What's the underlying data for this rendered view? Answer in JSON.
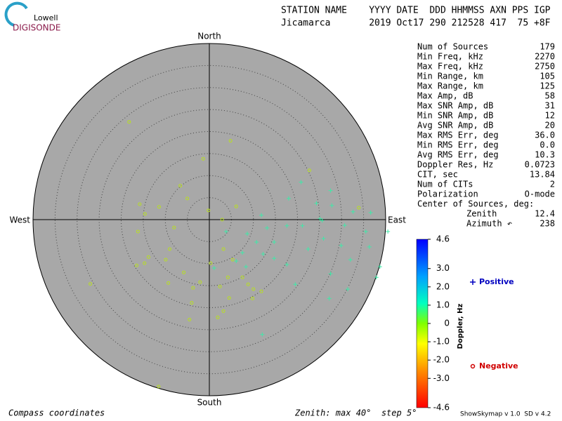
{
  "logo": {
    "top": "Lowell",
    "name": "DIGISONDE"
  },
  "header": {
    "labels": "STATION NAME    YYYY DATE  DDD HHMMSS AXN PPS IGP",
    "values": "Jicamarca       2019 Oct17 290 212528 417  75 +8F"
  },
  "params": [
    [
      "Num of Sources",
      "179"
    ],
    [
      "Min Freq, kHz",
      "2270"
    ],
    [
      "Max Freq, kHz",
      "2750"
    ],
    [
      "Min Range, km",
      "105"
    ],
    [
      "Max Range, km",
      "125"
    ],
    [
      "Max Amp, dB",
      "58"
    ],
    [
      "Max SNR Amp, dB",
      "31"
    ],
    [
      "Min SNR Amp, dB",
      "12"
    ],
    [
      "Avg SNR Amp, dB",
      "20"
    ],
    [
      "Max RMS Err, deg",
      "36.0"
    ],
    [
      "Min RMS Err, deg",
      "0.0"
    ],
    [
      "Avg RMS Err, deg",
      "10.3"
    ],
    [
      "Doppler Res, Hz",
      "0.0723"
    ],
    [
      "CIT, sec",
      "13.84"
    ],
    [
      "Num of CITs",
      "2"
    ],
    [
      "Polarization",
      "O-mode"
    ]
  ],
  "center": {
    "title": "Center of Sources, deg:",
    "rows": [
      [
        "Zenith",
        "12.4"
      ],
      [
        "Azimuth ↶",
        "238"
      ]
    ]
  },
  "footer": {
    "left": "Compass coordinates",
    "middle": "Zenith: max 40°  step 5°",
    "right": "ShowSkymap v 1.0  SD v 4.2"
  },
  "chart_data": {
    "type": "scatter",
    "directions": {
      "north": "North",
      "south": "South",
      "east": "East",
      "west": "West"
    },
    "rlim": [
      0,
      40
    ],
    "rticks": [
      5,
      10,
      15,
      20,
      25,
      30,
      35
    ],
    "series": [
      {
        "name": "Positive",
        "marker": "plus",
        "color": "#40e8a8",
        "legend_color": "#0000c0",
        "x": [
          20.8,
          18,
          24.3,
          27.8,
          32.6,
          36.6,
          40.5,
          11.8,
          13.1,
          17.6,
          21.1,
          25.6,
          30.7,
          35.5,
          8.6,
          10.7,
          14.7,
          22.4,
          25.9,
          29.9,
          36.3,
          38.7,
          32,
          7.5,
          12.2,
          17.6,
          27.5,
          37.9,
          31.4,
          27.2,
          19.5,
          12,
          8.3,
          3.8,
          1.1,
          6.1,
          27.5,
          25.1,
          14.7
        ],
        "y": [
          8.5,
          4.8,
          3.7,
          3.2,
          1.8,
          1.6,
          -2.7,
          1,
          -1.9,
          -1.4,
          -1.4,
          -0.2,
          -1.3,
          -2.7,
          -3.2,
          -5.1,
          -5.1,
          -6.7,
          -4.3,
          -5.9,
          -6.2,
          -10.7,
          -9.1,
          -7.5,
          -7.8,
          -10.2,
          -12.3,
          -13.1,
          -15.8,
          -17.9,
          -14.7,
          -26.1,
          -10.7,
          -2.7,
          -11,
          -9.4,
          6.6,
          0.2,
          -8.8
        ]
      },
      {
        "name": "Negative",
        "marker": "circle",
        "color": "#b8e020",
        "legend_color": "#d00000",
        "x": [
          -18.2,
          4.8,
          -1.4,
          -6.6,
          -5,
          -15.8,
          -11.4,
          -0.2,
          -14.6,
          6.1,
          2.9,
          -16.2,
          -8,
          -13.8,
          -14.7,
          -16.5,
          -9.9,
          -9,
          -5.8,
          -9.3,
          -27,
          -3.7,
          -2.1,
          -4,
          -4.5,
          1.9,
          3.2,
          4.5,
          2.4,
          0.3,
          3.2,
          5.3,
          7.5,
          9.8,
          11.8,
          4.2,
          22.7,
          33.9,
          -11.5,
          8.8,
          10
        ],
        "y": [
          22.2,
          17.9,
          13.8,
          7.7,
          4.8,
          3.5,
          2.9,
          2.1,
          1.3,
          3,
          0,
          -2.7,
          -1.8,
          -8.5,
          -9.9,
          -10.4,
          -9.1,
          -6.7,
          -12,
          -14.4,
          -14.6,
          -15.5,
          -14.2,
          -18.9,
          -22.7,
          -22.2,
          -20.8,
          -17.8,
          -15.2,
          -9.9,
          -6.7,
          -9.1,
          -13.1,
          -17.9,
          -16.3,
          -13.1,
          11.2,
          2.7,
          -37.9,
          -14.7,
          -15.8
        ]
      }
    ],
    "colorbar": {
      "label": "Doppler, Hz",
      "lim": [
        -4.6,
        4.6
      ],
      "ticks": [
        4.6,
        {
          "value": 3,
          "label": "3.0"
        },
        {
          "value": 2,
          "label": "2.0"
        },
        {
          "value": 1,
          "label": "1.0"
        },
        0,
        {
          "value": -1,
          "label": "-1.0"
        },
        {
          "value": -2,
          "label": "-2.0"
        },
        {
          "value": -3,
          "label": "-3.0"
        },
        -4.6
      ]
    }
  }
}
